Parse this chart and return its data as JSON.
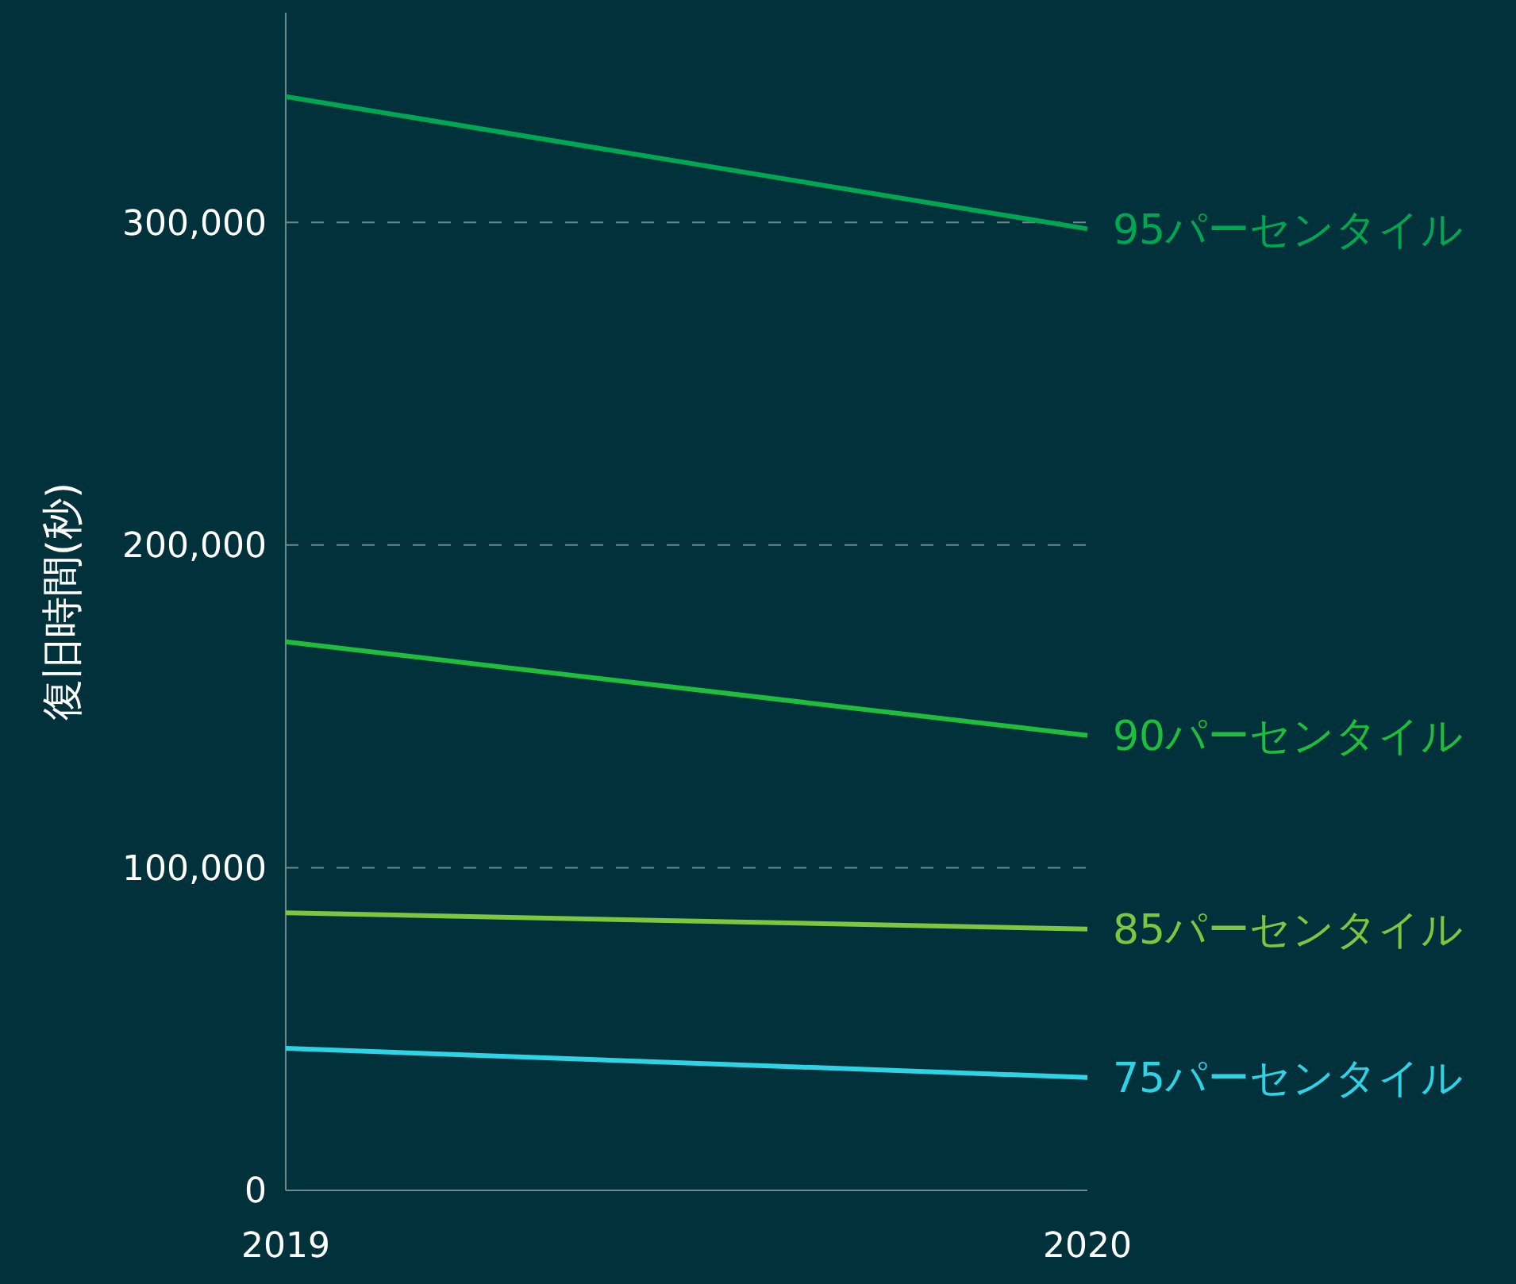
{
  "chart_data": {
    "type": "line",
    "ylabel": "復旧時間(秒)",
    "x": [
      "2019",
      "2020"
    ],
    "xlim": [
      "2019",
      "2020"
    ],
    "xticks": [
      {
        "value": "2019",
        "label": "2019"
      },
      {
        "value": "2020",
        "label": "2020"
      }
    ],
    "ylim": [
      0,
      365000
    ],
    "yticks": [
      {
        "value": 0,
        "label": "0"
      },
      {
        "value": 100000,
        "label": "100,000"
      },
      {
        "value": 200000,
        "label": "200,000"
      },
      {
        "value": 300000,
        "label": "300,000"
      }
    ],
    "grid": "y",
    "legend": false,
    "marker": "none",
    "line_style": "solid",
    "series": [
      {
        "name": "95パーセンタイル",
        "color": "#00a651",
        "values": [
          339000,
          298000
        ]
      },
      {
        "name": "90パーセンタイル",
        "color": "#1ebe3c",
        "values": [
          170000,
          141000
        ]
      },
      {
        "name": "85パーセンタイル",
        "color": "#7dc63f",
        "values": [
          86000,
          81000
        ]
      },
      {
        "name": "75パーセンタイル",
        "color": "#2ed3e6",
        "values": [
          44000,
          35000
        ]
      }
    ]
  }
}
